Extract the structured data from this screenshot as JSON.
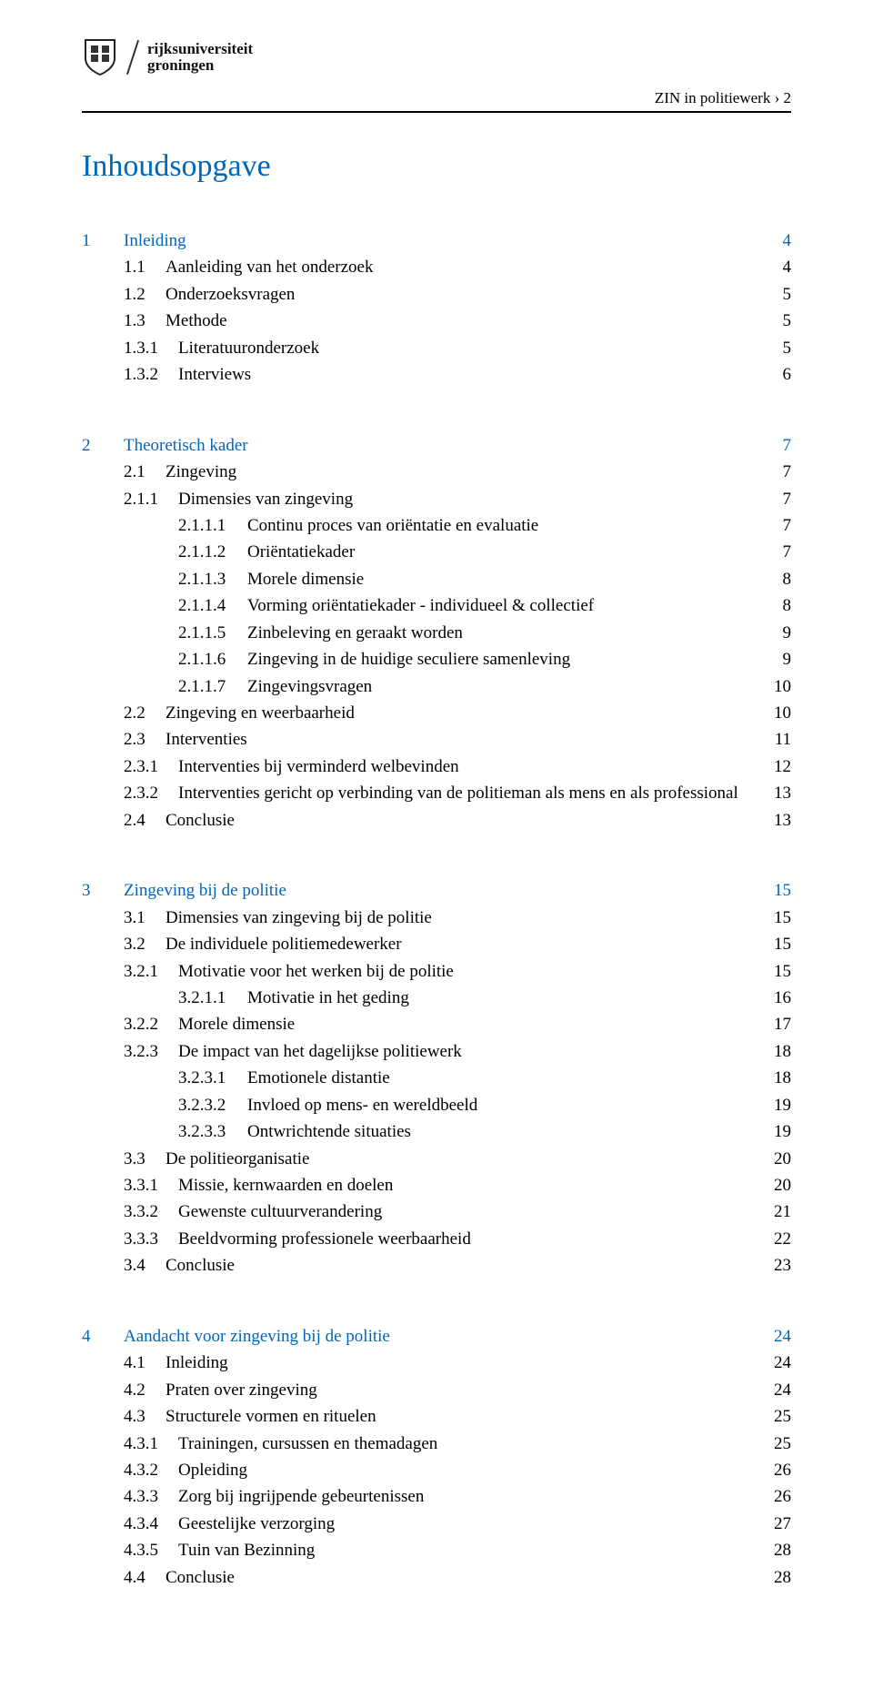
{
  "university": {
    "line1": "rijksuniversiteit",
    "line2": "groningen"
  },
  "running_head": "ZIN in politiewerk › 2",
  "page_title": "Inhoudsopgave",
  "colors": {
    "section_heading": "#0066bb",
    "body_text": "#000000",
    "background": "#ffffff",
    "rule": "#000000"
  },
  "typography": {
    "body_fontsize_pt": 14,
    "title_fontsize_pt": 26,
    "font_family": "Georgia, serif"
  },
  "sections": [
    {
      "entries": [
        {
          "level": 0,
          "num": "1",
          "label": "Inleiding",
          "page": "4",
          "heading": true
        },
        {
          "level": 1,
          "num": "1.1",
          "label": "Aanleiding van het onderzoek",
          "page": "4"
        },
        {
          "level": 1,
          "num": "1.2",
          "label": "Onderzoeksvragen",
          "page": "5"
        },
        {
          "level": 1,
          "num": "1.3",
          "label": "Methode",
          "page": "5"
        },
        {
          "level": 2,
          "num": "1.3.1",
          "label": "Literatuuronderzoek",
          "page": "5"
        },
        {
          "level": 2,
          "num": "1.3.2",
          "label": "Interviews",
          "page": "6"
        }
      ]
    },
    {
      "entries": [
        {
          "level": 0,
          "num": "2",
          "label": "Theoretisch kader",
          "page": "7",
          "heading": true
        },
        {
          "level": 1,
          "num": "2.1",
          "label": "Zingeving",
          "page": "7"
        },
        {
          "level": 2,
          "num": "2.1.1",
          "label": "Dimensies van zingeving",
          "page": "7"
        },
        {
          "level": 3,
          "num": "2.1.1.1",
          "label": "Continu proces van oriëntatie en evaluatie",
          "page": "7"
        },
        {
          "level": 3,
          "num": "2.1.1.2",
          "label": "Oriëntatiekader",
          "page": "7"
        },
        {
          "level": 3,
          "num": "2.1.1.3",
          "label": "Morele dimensie",
          "page": "8"
        },
        {
          "level": 3,
          "num": "2.1.1.4",
          "label": "Vorming oriëntatiekader - individueel & collectief",
          "page": "8"
        },
        {
          "level": 3,
          "num": "2.1.1.5",
          "label": "Zinbeleving en geraakt worden",
          "page": "9"
        },
        {
          "level": 3,
          "num": "2.1.1.6",
          "label": "Zingeving in de huidige seculiere samenleving",
          "page": "9"
        },
        {
          "level": 3,
          "num": "2.1.1.7",
          "label": "Zingevingsvragen",
          "page": "10"
        },
        {
          "level": 1,
          "num": "2.2",
          "label": "Zingeving en weerbaarheid",
          "page": "10"
        },
        {
          "level": 1,
          "num": "2.3",
          "label": "Interventies",
          "page": "11"
        },
        {
          "level": 2,
          "num": "2.3.1",
          "label": "Interventies bij verminderd welbevinden",
          "page": "12"
        },
        {
          "level": 2,
          "num": "2.3.2",
          "label": "Interventies gericht op verbinding van de politieman als mens en als professional",
          "page": "13"
        },
        {
          "level": 1,
          "num": "2.4",
          "label": "Conclusie",
          "page": "13"
        }
      ]
    },
    {
      "entries": [
        {
          "level": 0,
          "num": "3",
          "label": "Zingeving bij de politie",
          "page": "15",
          "heading": true
        },
        {
          "level": 1,
          "num": "3.1",
          "label": "Dimensies van zingeving bij de politie",
          "page": "15"
        },
        {
          "level": 1,
          "num": "3.2",
          "label": "De individuele politiemedewerker",
          "page": "15"
        },
        {
          "level": 2,
          "num": "3.2.1",
          "label": "Motivatie voor het werken bij de politie",
          "page": "15"
        },
        {
          "level": 3,
          "num": "3.2.1.1",
          "label": "Motivatie in het geding",
          "page": "16"
        },
        {
          "level": 2,
          "num": "3.2.2",
          "label": "Morele dimensie",
          "page": "17"
        },
        {
          "level": 2,
          "num": "3.2.3",
          "label": "De impact van het dagelijkse politiewerk",
          "page": "18"
        },
        {
          "level": 3,
          "num": "3.2.3.1",
          "label": "Emotionele distantie",
          "page": "18"
        },
        {
          "level": 3,
          "num": "3.2.3.2",
          "label": "Invloed op mens- en wereldbeeld",
          "page": "19"
        },
        {
          "level": 3,
          "num": "3.2.3.3",
          "label": "Ontwrichtende situaties",
          "page": "19"
        },
        {
          "level": 1,
          "num": "3.3",
          "label": "De politieorganisatie",
          "page": "20"
        },
        {
          "level": 2,
          "num": "3.3.1",
          "label": "Missie, kernwaarden en doelen",
          "page": "20"
        },
        {
          "level": 2,
          "num": "3.3.2",
          "label": "Gewenste cultuurverandering",
          "page": "21"
        },
        {
          "level": 2,
          "num": "3.3.3",
          "label": "Beeldvorming professionele weerbaarheid",
          "page": "22"
        },
        {
          "level": 1,
          "num": "3.4",
          "label": "Conclusie",
          "page": "23"
        }
      ]
    },
    {
      "entries": [
        {
          "level": 0,
          "num": "4",
          "label": "Aandacht voor zingeving bij de politie",
          "page": "24",
          "heading": true
        },
        {
          "level": 1,
          "num": "4.1",
          "label": "Inleiding",
          "page": "24"
        },
        {
          "level": 1,
          "num": "4.2",
          "label": "Praten over zingeving",
          "page": "24"
        },
        {
          "level": 1,
          "num": "4.3",
          "label": "Structurele vormen en rituelen",
          "page": "25"
        },
        {
          "level": 2,
          "num": "4.3.1",
          "label": "Trainingen, cursussen en themadagen",
          "page": "25"
        },
        {
          "level": 2,
          "num": "4.3.2",
          "label": "Opleiding",
          "page": "26"
        },
        {
          "level": 2,
          "num": "4.3.3",
          "label": "Zorg bij ingrijpende gebeurtenissen",
          "page": "26"
        },
        {
          "level": 2,
          "num": "4.3.4",
          "label": "Geestelijke verzorging",
          "page": "27"
        },
        {
          "level": 2,
          "num": "4.3.5",
          "label": "Tuin van Bezinning",
          "page": "28"
        },
        {
          "level": 1,
          "num": "4.4",
          "label": "Conclusie",
          "page": "28"
        }
      ]
    }
  ]
}
